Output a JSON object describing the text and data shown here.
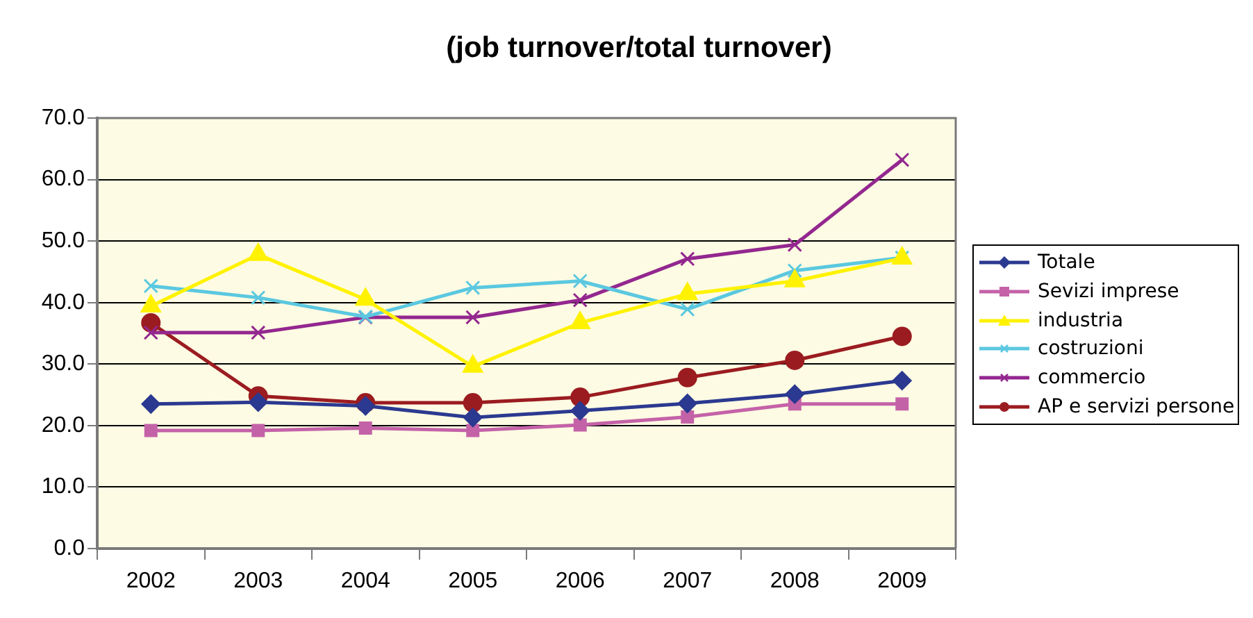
{
  "chart_data": {
    "type": "line",
    "title": "(job turnover/total turnover)",
    "categories": [
      "2002",
      "2003",
      "2004",
      "2005",
      "2006",
      "2007",
      "2008",
      "2009"
    ],
    "series": [
      {
        "name": "Totale",
        "color": "#2b3990",
        "marker": "diamond",
        "values": [
          23.5,
          23.8,
          23.2,
          21.3,
          22.4,
          23.6,
          25.1,
          27.3
        ]
      },
      {
        "name": "Sevizi imprese",
        "color": "#c462a8",
        "marker": "square",
        "values": [
          19.2,
          19.2,
          19.6,
          19.2,
          20.1,
          21.4,
          23.5,
          23.5
        ]
      },
      {
        "name": "industria",
        "color": "#fff200",
        "marker": "triangle",
        "values": [
          39.4,
          47.8,
          40.5,
          29.6,
          36.7,
          41.4,
          43.5,
          47.2
        ]
      },
      {
        "name": "costruzioni",
        "color": "#5bc8e0",
        "marker": "cross",
        "values": [
          42.7,
          40.8,
          37.7,
          42.4,
          43.5,
          38.9,
          45.2,
          47.3
        ]
      },
      {
        "name": "commercio",
        "color": "#93278f",
        "marker": "cross",
        "values": [
          35.1,
          35.1,
          37.6,
          37.6,
          40.4,
          47.1,
          49.4,
          63.2
        ]
      },
      {
        "name": "AP e servizi persone",
        "color": "#9b1c20",
        "marker": "circle",
        "values": [
          36.7,
          24.8,
          23.7,
          23.7,
          24.6,
          27.8,
          30.6,
          34.5
        ]
      }
    ],
    "ylim": [
      0,
      70
    ],
    "yticks": [
      {
        "value": 0,
        "label": "0.0"
      },
      {
        "value": 10,
        "label": "10.0"
      },
      {
        "value": 20,
        "label": "20.0"
      },
      {
        "value": 30,
        "label": "30.0"
      },
      {
        "value": 40,
        "label": "40.0"
      },
      {
        "value": 50,
        "label": "50.0"
      },
      {
        "value": 60,
        "label": "60.0"
      },
      {
        "value": 70,
        "label": "70.0"
      }
    ],
    "grid": "y",
    "legend": "right",
    "line_style": "solid"
  }
}
